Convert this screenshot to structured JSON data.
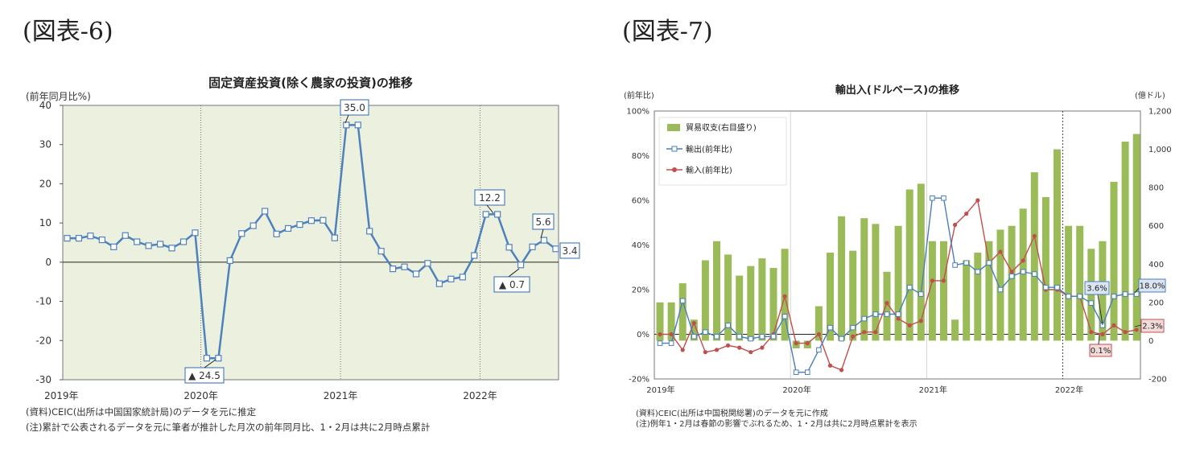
{
  "figures": {
    "left_label": "(図表-6)",
    "right_label": "(図表-7)"
  },
  "notes": {
    "left_source": "(資料)CEIC(出所は中国国家統計局)のデータを元に推定",
    "left_note": "(注)累計で公表されるデータを元に筆者が推計した月次の前年同月比、1・2月は共に2月時点累計",
    "right_source": "(資料)CEIC(出所は中国税関総署)のデータを元に作成",
    "right_note": "(注)例年1・2月は春節の影響でぶれるため、1・2月は共に2月時点累計を表示"
  },
  "chart_data": [
    {
      "type": "line",
      "title": "固定資産投資(除く農家の投資)の推移",
      "ylabel": "(前年同月比%)",
      "ylim": [
        -30,
        40
      ],
      "yticks": [
        "40",
        "30",
        "20",
        "10",
        "0",
        "-10",
        "-20",
        "-30"
      ],
      "xlabels": [
        "2019年",
        "2020年",
        "2021年",
        "2022年"
      ],
      "grid": "vertical dotted lines at year boundaries",
      "series": [
        {
          "values": [
            6.1,
            6.1,
            6.7,
            5.7,
            3.9,
            6.8,
            5.2,
            4.2,
            4.6,
            3.6,
            5.2,
            7.5,
            -24.5,
            -24.5,
            0.4,
            7.3,
            9.3,
            13.0,
            7.2,
            8.6,
            9.6,
            10.6,
            10.7,
            6.2,
            35.0,
            35.0,
            7.9,
            2.8,
            -1.7,
            -1.2,
            -3.0,
            -0.3,
            -5.5,
            -4.3,
            -3.8,
            1.7,
            12.2,
            12.2,
            3.8,
            -0.7,
            3.9,
            5.6,
            3.4
          ]
        }
      ],
      "annotations": {
        "a1": "35.0",
        "a2": "12.2",
        "a3": "5.6",
        "a4": "3.4",
        "a5": "▲ 24.5",
        "a6": "▲ 0.7"
      }
    },
    {
      "type": "bar+line",
      "title": "輸出入(ドルベース)の推移",
      "ylabel_left": "(前年比)",
      "ylabel_right": "(億ドル)",
      "ylim_left": [
        -20,
        100
      ],
      "ylim_right": [
        -200,
        1200
      ],
      "yticks_left": [
        "100%",
        "80%",
        "60%",
        "40%",
        "20%",
        "0%",
        "-20%"
      ],
      "yticks_right": [
        "1,200",
        "1,000",
        "800",
        "600",
        "400",
        "200",
        "0",
        "-200"
      ],
      "xlabels": [
        "2019年",
        "2020年",
        "2021年",
        "2022年"
      ],
      "legend": {
        "placement": "top-left",
        "bar": "貿易収支(右目盛り)",
        "export": "輸出(前年比)",
        "import": "輸入(前年比)"
      },
      "series": [
        {
          "name": "貿易収支(右目盛り)",
          "values": [
            200,
            200,
            300,
            110,
            420,
            520,
            450,
            340,
            390,
            430,
            380,
            480,
            -40,
            -40,
            180,
            460,
            650,
            470,
            640,
            610,
            360,
            600,
            790,
            820,
            520,
            520,
            110,
            420,
            460,
            520,
            580,
            600,
            690,
            880,
            750,
            1000,
            600,
            600,
            480,
            520,
            830,
            1040,
            1080
          ]
        },
        {
          "name": "輸出(前年比)",
          "values": [
            -4,
            -4,
            15,
            -1,
            1,
            -1,
            4,
            -1,
            -2,
            -1,
            -1,
            8,
            -17,
            -17,
            -7,
            3,
            -2,
            3,
            7,
            9,
            9,
            9,
            21,
            18,
            61,
            61,
            31,
            32,
            28,
            32,
            20,
            26,
            28,
            27,
            21,
            21,
            17,
            17,
            14,
            4,
            17,
            18,
            18
          ]
        },
        {
          "name": "輸入(前年比)",
          "values": [
            0,
            0,
            -7,
            5,
            -8,
            -7,
            -5,
            -6,
            -8,
            -6,
            0,
            17,
            -4,
            -4,
            0,
            -14,
            -16,
            -1,
            1,
            1,
            14,
            7,
            4,
            6,
            24,
            24,
            49,
            54,
            60,
            32,
            37,
            28,
            33,
            44,
            20,
            20,
            17,
            17,
            1,
            0,
            4,
            1,
            2
          ]
        }
      ],
      "annotations": {
        "b1": "3.6%",
        "b2": "18.0%",
        "b3": "2.3%",
        "b4": "0.1%"
      }
    }
  ]
}
